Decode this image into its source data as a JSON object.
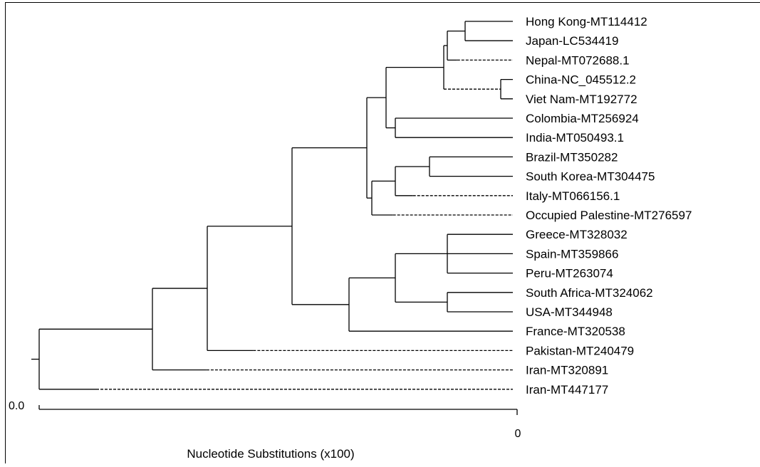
{
  "scale_label": "Nucleotide Substitutions (x100)",
  "scale_min_label": "0.0",
  "scale_max_label": "0",
  "colors": {
    "line": "#000000",
    "background": "#ffffff",
    "frame": "#000000"
  },
  "taxa": [
    "Hong Kong-MT114412",
    "Japan-LC534419",
    "Nepal-MT072688.1",
    "China-NC_045512.2",
    "Viet Nam-MT192772",
    "Colombia-MT256924",
    "India-MT050493.1",
    "Brazil-MT350282",
    "South Korea-MT304475",
    "Italy-MT066156.1",
    "Occupied Palestine-MT276597",
    "Greece-MT328032",
    "Spain-MT359866",
    "Peru-MT263074",
    "South Africa-MT324062",
    "USA-MT344948",
    "France-MT320538",
    "Pakistan-MT240479",
    "Iran-MT320891",
    "Iran-MT447177"
  ]
}
